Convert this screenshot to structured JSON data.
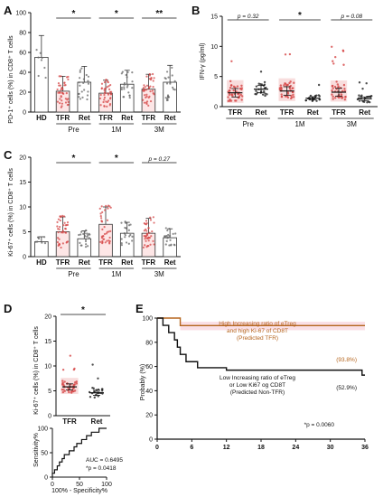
{
  "panels": {
    "A": {
      "letter": "A",
      "ylabel": "PD-1⁺ cells (%) in CD8⁺ T cells",
      "yticks": [
        0,
        20,
        40,
        60,
        80,
        100
      ],
      "ylim": [
        0,
        100
      ],
      "bars": [
        {
          "cat": "HD",
          "mean": 55,
          "sd": 22,
          "group": "hd"
        },
        {
          "cat": "TFR",
          "mean": 21,
          "sd": 15,
          "group": "tfr"
        },
        {
          "cat": "Ret",
          "mean": 30,
          "sd": 16,
          "group": "ret"
        },
        {
          "cat": "TFR",
          "mean": 19,
          "sd": 13,
          "group": "tfr"
        },
        {
          "cat": "Ret",
          "mean": 28,
          "sd": 14,
          "group": "ret"
        },
        {
          "cat": "TFR",
          "mean": 23,
          "sd": 15,
          "group": "tfr"
        },
        {
          "cat": "Ret",
          "mean": 30,
          "sd": 17,
          "group": "ret"
        }
      ],
      "timepoints": [
        "Pre",
        "1M",
        "3M"
      ],
      "sig": [
        {
          "pair": [
            1,
            2
          ],
          "label": "*"
        },
        {
          "pair": [
            3,
            4
          ],
          "label": "*"
        },
        {
          "pair": [
            5,
            6
          ],
          "label": "**"
        }
      ]
    },
    "B": {
      "letter": "B",
      "ylabel": "IFN-γ (pg/ml)",
      "yticks": [
        0,
        5,
        10,
        15
      ],
      "ylim": [
        0,
        15
      ],
      "groups": [
        {
          "cat": "TFR",
          "median": 2.3,
          "spread": 1.4,
          "group": "tfr"
        },
        {
          "cat": "Ret",
          "median": 2.9,
          "spread": 1.2,
          "group": "ret"
        },
        {
          "cat": "TFR",
          "median": 2.6,
          "spread": 1.4,
          "group": "tfr"
        },
        {
          "cat": "Ret",
          "median": 1.4,
          "spread": 0.5,
          "group": "ret"
        },
        {
          "cat": "TFR",
          "median": 2.4,
          "spread": 1.3,
          "group": "tfr"
        },
        {
          "cat": "Ret",
          "median": 1.3,
          "spread": 0.6,
          "group": "ret"
        }
      ],
      "timepoints": [
        "Pre",
        "1M",
        "3M"
      ],
      "sig": [
        {
          "pair": [
            0,
            1
          ],
          "label": "p = 0.32",
          "italic": true
        },
        {
          "pair": [
            2,
            3
          ],
          "label": "*",
          "italic": false
        },
        {
          "pair": [
            4,
            5
          ],
          "label": "p = 0.08",
          "italic": true
        }
      ]
    },
    "C": {
      "letter": "C",
      "ylabel": "Ki-67⁺ cells (%) in CD8⁺ T cells",
      "yticks": [
        0,
        5,
        10,
        15,
        20
      ],
      "ylim": [
        0,
        20
      ],
      "bars": [
        {
          "cat": "HD",
          "mean": 3,
          "sd": 1,
          "group": "hd"
        },
        {
          "cat": "TFR",
          "mean": 5,
          "sd": 3,
          "group": "tfr"
        },
        {
          "cat": "Ret",
          "mean": 3.6,
          "sd": 1.6,
          "group": "ret"
        },
        {
          "cat": "TFR",
          "mean": 6.5,
          "sd": 3.5,
          "group": "tfr"
        },
        {
          "cat": "Ret",
          "mean": 4.7,
          "sd": 2.2,
          "group": "ret"
        },
        {
          "cat": "TFR",
          "mean": 4.7,
          "sd": 3,
          "group": "tfr"
        },
        {
          "cat": "Ret",
          "mean": 3.8,
          "sd": 1.8,
          "group": "ret"
        }
      ],
      "timepoints": [
        "Pre",
        "1M",
        "3M"
      ],
      "sig": [
        {
          "pair": [
            1,
            2
          ],
          "label": "*",
          "italic": false
        },
        {
          "pair": [
            3,
            4
          ],
          "label": "*",
          "italic": false
        },
        {
          "pair": [
            5,
            6
          ],
          "label": "p = 0.27",
          "italic": true
        }
      ]
    },
    "D": {
      "letter": "D",
      "ylabel": "Ki-67⁺ cells (%) in CD8⁺ T cells",
      "yticks": [
        0,
        5,
        10,
        15,
        20
      ],
      "ylim": [
        0,
        20
      ],
      "groups": [
        {
          "cat": "TFR",
          "median": 5.8,
          "spread": 1.2,
          "group": "tfr"
        },
        {
          "cat": "Ret",
          "median": 4.6,
          "spread": 1.0,
          "group": "ret"
        }
      ],
      "sig_label": "*",
      "roc": {
        "ylabel": "Sensitivity%",
        "xlabel": "100% - Specificity%",
        "xticks": [
          0,
          50,
          100
        ],
        "yticks": [
          0,
          50,
          100
        ],
        "auc_text": "AUC = 0.6495",
        "p_text": "*p = 0.0418",
        "points": [
          [
            0,
            0
          ],
          [
            0,
            8
          ],
          [
            4,
            8
          ],
          [
            4,
            15
          ],
          [
            9,
            15
          ],
          [
            9,
            23
          ],
          [
            13,
            23
          ],
          [
            13,
            31
          ],
          [
            18,
            31
          ],
          [
            18,
            38
          ],
          [
            22,
            38
          ],
          [
            22,
            46
          ],
          [
            31,
            46
          ],
          [
            31,
            54
          ],
          [
            40,
            54
          ],
          [
            40,
            62
          ],
          [
            45,
            62
          ],
          [
            45,
            69
          ],
          [
            54,
            69
          ],
          [
            54,
            77
          ],
          [
            63,
            77
          ],
          [
            63,
            85
          ],
          [
            72,
            85
          ],
          [
            72,
            92
          ],
          [
            86,
            92
          ],
          [
            86,
            100
          ],
          [
            100,
            100
          ]
        ]
      }
    },
    "E": {
      "letter": "E",
      "ylabel": "Probably (%)",
      "xticks": [
        0,
        6,
        12,
        18,
        24,
        30,
        36
      ],
      "yticks": [
        0,
        20,
        40,
        60,
        80,
        100
      ],
      "xlim": [
        0,
        36
      ],
      "ylim": [
        0,
        100
      ],
      "series": [
        {
          "name": "High Increasing ratio of eTreg and high Ki-67 of CD8T (Predicted TFR)",
          "label_lines": [
            "High Increasing ratio of eTreg",
            "and high Ki-67 of CD8T",
            "(Predicted TFR)"
          ],
          "end_label": "(93.8%)",
          "color": "#b5651d",
          "band_color": "#f6c9d6",
          "steps": [
            [
              0,
              100
            ],
            [
              4,
              100
            ],
            [
              4,
              93.8
            ],
            [
              36,
              93.8
            ]
          ]
        },
        {
          "name": "Low Increasing ratio of eTreg or Low Ki67 og CD8T (Predicted Non-TFR)",
          "label_lines": [
            "Low Increasing ratio of eTreg",
            "or Low Ki67 og CD8T",
            "(Predicted Non-TFR)"
          ],
          "end_label": "(52.9%)",
          "color": "#111111",
          "steps": [
            [
              0,
              100
            ],
            [
              1,
              100
            ],
            [
              1,
              94
            ],
            [
              2,
              94
            ],
            [
              2,
              88
            ],
            [
              3,
              88
            ],
            [
              3,
              82
            ],
            [
              3.5,
              82
            ],
            [
              3.5,
              76
            ],
            [
              4,
              76
            ],
            [
              4,
              70
            ],
            [
              5,
              70
            ],
            [
              5,
              64
            ],
            [
              7,
              64
            ],
            [
              7,
              59
            ],
            [
              12,
              59
            ],
            [
              12,
              57
            ],
            [
              35.5,
              57
            ],
            [
              35.5,
              52.9
            ],
            [
              36,
              52.9
            ]
          ]
        }
      ],
      "p_text": "*p = 0.0060"
    }
  },
  "colors": {
    "tfr": "#d64545",
    "tfr_light": "#f3c6c6",
    "ret": "#222222",
    "hd": "#777777",
    "bar_fill_pink": "#fde6e6"
  }
}
